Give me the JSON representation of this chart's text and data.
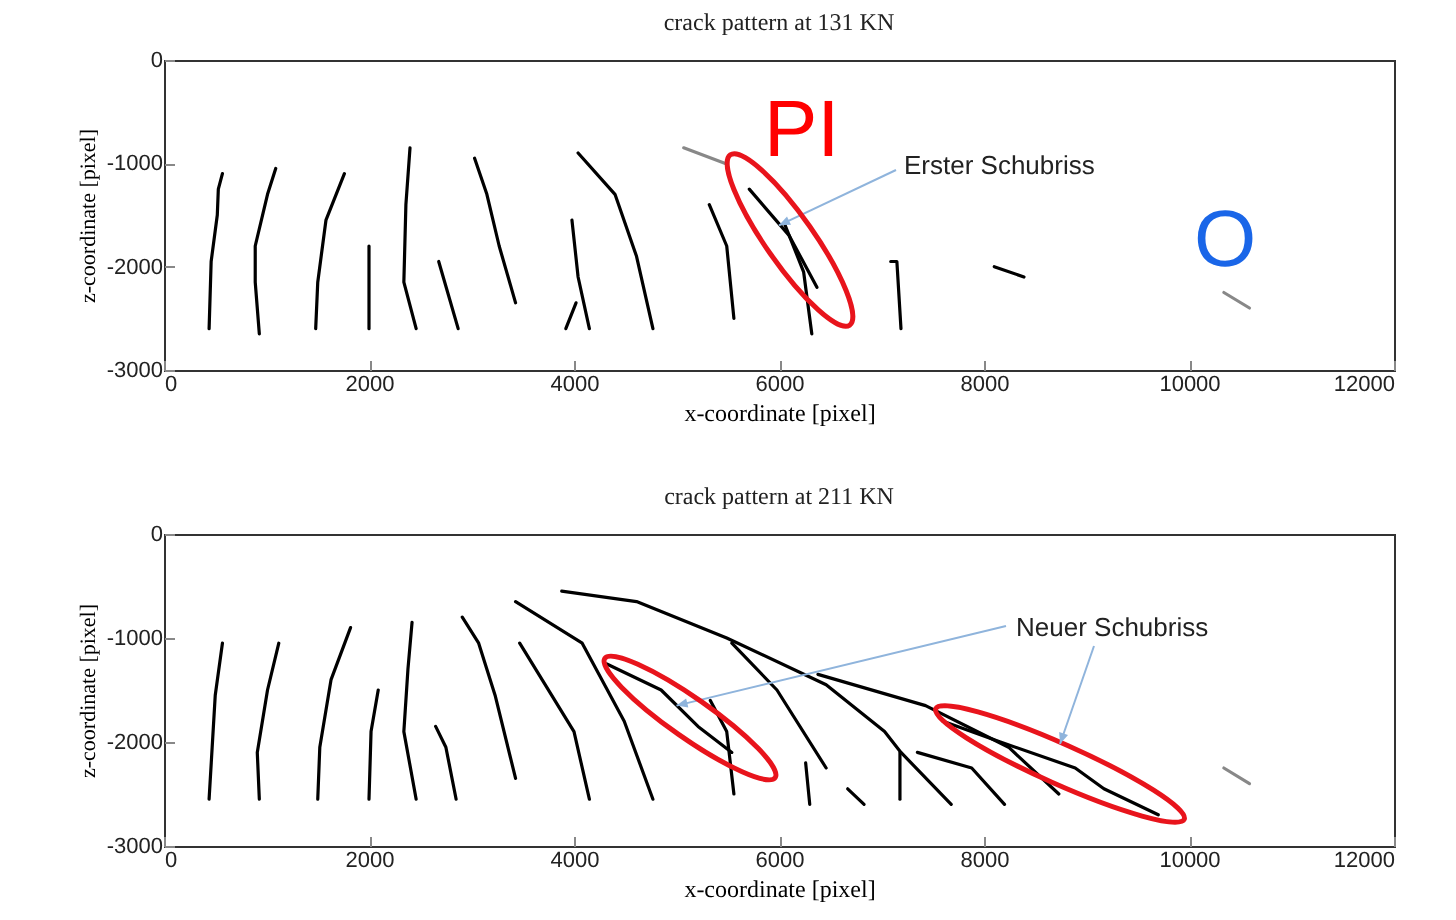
{
  "chart_data": [
    {
      "type": "line",
      "title": "crack pattern at 131 KN",
      "xlabel": "x-coordinate [pixel]",
      "ylabel": "z-coordinate [pixel]",
      "xlim": [
        0,
        12000
      ],
      "ylim": [
        -3000,
        0
      ],
      "xticks": [
        0,
        2000,
        4000,
        6000,
        8000,
        10000,
        12000
      ],
      "yticks": [
        -3000,
        -2000,
        -1000,
        0
      ],
      "annotations": [
        "PI",
        "O",
        {
          "text": "Erster Schubriss",
          "x": 6000,
          "y": -1600
        }
      ],
      "series": [
        {
          "color": "#000000",
          "x": [
            440,
            460,
            520,
            530,
            570
          ],
          "values": [
            -2600,
            -1950,
            -1500,
            -1250,
            -1100
          ]
        },
        {
          "color": "#000000",
          "x": [
            930,
            890,
            890,
            1010,
            1090
          ],
          "values": [
            -2650,
            -2150,
            -1800,
            -1300,
            -1050
          ]
        },
        {
          "color": "#000000",
          "x": [
            1480,
            1500,
            1580,
            1760
          ],
          "values": [
            -2600,
            -2150,
            -1550,
            -1100
          ]
        },
        {
          "color": "#000000",
          "x": [
            2000,
            2000
          ],
          "values": [
            -2600,
            -1800
          ]
        },
        {
          "color": "#000000",
          "x": [
            2460,
            2340,
            2360,
            2400
          ],
          "values": [
            -2600,
            -2150,
            -1400,
            -850
          ]
        },
        {
          "color": "#000000",
          "x": [
            2870,
            2680
          ],
          "values": [
            -2600,
            -1950
          ]
        },
        {
          "color": "#000000",
          "x": [
            3430,
            3270,
            3150,
            3030
          ],
          "values": [
            -2350,
            -1800,
            -1300,
            -950
          ]
        },
        {
          "color": "#000000",
          "x": [
            4150,
            4040,
            3980
          ],
          "values": [
            -2600,
            -2100,
            -1550
          ]
        },
        {
          "color": "#000000",
          "x": [
            3920,
            4020
          ],
          "values": [
            -2600,
            -2350
          ]
        },
        {
          "color": "#000000",
          "x": [
            4770,
            4610,
            4400,
            4040
          ],
          "values": [
            -2600,
            -1900,
            -1300,
            -900
          ]
        },
        {
          "color": "#000000",
          "x": [
            5560,
            5490,
            5320
          ],
          "values": [
            -2500,
            -1800,
            -1400
          ]
        },
        {
          "color": "#000000",
          "x": [
            5710,
            6100,
            6370
          ],
          "values": [
            -1250,
            -1700,
            -2200
          ]
        },
        {
          "color": "#000000",
          "x": [
            6320,
            6240,
            6060
          ],
          "values": [
            -2650,
            -2050,
            -1600
          ]
        },
        {
          "color": "#000000",
          "x": [
            7190,
            7150,
            7090
          ],
          "values": [
            -2600,
            -1950,
            -1950
          ]
        },
        {
          "color": "#000000",
          "x": [
            8100,
            8390
          ],
          "values": [
            -2000,
            -2100
          ]
        },
        {
          "color": "#888888",
          "x": [
            5070,
            5470
          ],
          "values": [
            -850,
            -1000
          ]
        },
        {
          "color": "#888888",
          "x": [
            10340,
            10590
          ],
          "values": [
            -2250,
            -2400
          ]
        }
      ]
    },
    {
      "type": "line",
      "title": "crack pattern at 211 KN",
      "xlabel": "x-coordinate [pixel]",
      "ylabel": "z-coordinate [pixel]",
      "xlim": [
        0,
        12000
      ],
      "ylim": [
        -3000,
        0
      ],
      "xticks": [
        0,
        2000,
        4000,
        6000,
        8000,
        10000,
        12000
      ],
      "yticks": [
        -3000,
        -2000,
        -1000,
        0
      ],
      "annotations": [
        {
          "text": "Neuer Schubriss",
          "x": 5000,
          "y": -1650
        }
      ],
      "series": [
        {
          "color": "#000000",
          "x": [
            440,
            470,
            500,
            570
          ],
          "values": [
            -2550,
            -2050,
            -1550,
            -1050
          ]
        },
        {
          "color": "#000000",
          "x": [
            930,
            910,
            1010,
            1120
          ],
          "values": [
            -2550,
            -2100,
            -1500,
            -1050
          ]
        },
        {
          "color": "#000000",
          "x": [
            1500,
            1520,
            1630,
            1820
          ],
          "values": [
            -2550,
            -2050,
            -1400,
            -900
          ]
        },
        {
          "color": "#000000",
          "x": [
            2000,
            2020,
            2090
          ],
          "values": [
            -2550,
            -1900,
            -1500
          ]
        },
        {
          "color": "#000000",
          "x": [
            2460,
            2340,
            2380,
            2420
          ],
          "values": [
            -2550,
            -1900,
            -1300,
            -850
          ]
        },
        {
          "color": "#000000",
          "x": [
            2850,
            2750,
            2650
          ],
          "values": [
            -2550,
            -2050,
            -1850
          ]
        },
        {
          "color": "#000000",
          "x": [
            3430,
            3230,
            3070,
            2910
          ],
          "values": [
            -2350,
            -1550,
            -1050,
            -800
          ]
        },
        {
          "color": "#000000",
          "x": [
            4150,
            4000,
            3470
          ],
          "values": [
            -2550,
            -1900,
            -1050
          ]
        },
        {
          "color": "#000000",
          "x": [
            4770,
            4490,
            4080,
            3430
          ],
          "values": [
            -2550,
            -1800,
            -1050,
            -650
          ]
        },
        {
          "color": "#000000",
          "x": [
            4320,
            4850,
            5210,
            5540
          ],
          "values": [
            -1250,
            -1500,
            -1850,
            -2100
          ]
        },
        {
          "color": "#000000",
          "x": [
            5560,
            5490,
            5330
          ],
          "values": [
            -2500,
            -1900,
            -1600
          ]
        },
        {
          "color": "#000000",
          "x": [
            3880,
            4610,
            5490,
            6460,
            7030,
            7190,
            7680
          ],
          "values": [
            -550,
            -650,
            -1000,
            -1450,
            -1900,
            -2100,
            -2600
          ]
        },
        {
          "color": "#000000",
          "x": [
            5540,
            5980,
            6460
          ],
          "values": [
            -1050,
            -1500,
            -2250
          ]
        },
        {
          "color": "#000000",
          "x": [
            6300,
            6260
          ],
          "values": [
            -2600,
            -2200
          ]
        },
        {
          "color": "#000000",
          "x": [
            6380,
            7430,
            8240,
            8730
          ],
          "values": [
            -1350,
            -1650,
            -2050,
            -2500
          ]
        },
        {
          "color": "#000000",
          "x": [
            7600,
            8160,
            8890,
            9170,
            9700
          ],
          "values": [
            -1800,
            -2000,
            -2250,
            -2450,
            -2700
          ]
        },
        {
          "color": "#000000",
          "x": [
            7350,
            7880,
            8200
          ],
          "values": [
            -2100,
            -2250,
            -2600
          ]
        },
        {
          "color": "#000000",
          "x": [
            6670,
            6830
          ],
          "values": [
            -2450,
            -2600
          ]
        },
        {
          "color": "#000000",
          "x": [
            7180,
            7180
          ],
          "values": [
            -2550,
            -2100
          ]
        },
        {
          "color": "#888888",
          "x": [
            10340,
            10590
          ],
          "values": [
            -2250,
            -2400
          ]
        }
      ]
    }
  ]
}
